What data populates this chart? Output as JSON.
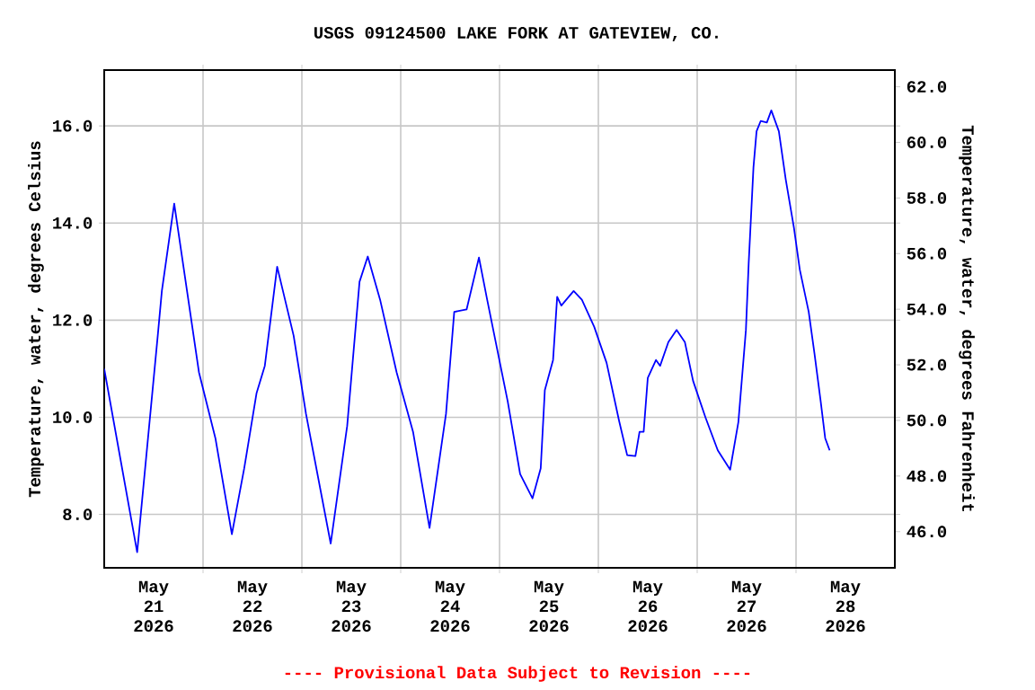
{
  "chart_data": {
    "type": "line",
    "title": "USGS 09124500 LAKE FORK AT GATEVIEW, CO.",
    "ylabel": "Temperature, water, degrees Celsius",
    "y2label": "Temperature, water, degrees Fahrenheit",
    "annotations": [
      "---- Provisional Data Subject to Revision ----"
    ],
    "color": "#0000ff",
    "grid": true,
    "xlim": [
      "2026-05-21T00:00",
      "2026-05-29T00:00"
    ],
    "xticks": [
      {
        "value": "2026-05-21T12:00",
        "label": "May 21 2026"
      },
      {
        "value": "2026-05-22T00:00",
        "label": null
      },
      {
        "value": "2026-05-22T12:00",
        "label": "May 22 2026"
      },
      {
        "value": "2026-05-23T00:00",
        "label": null
      },
      {
        "value": "2026-05-23T12:00",
        "label": "May 23 2026"
      },
      {
        "value": "2026-05-24T00:00",
        "label": null
      },
      {
        "value": "2026-05-24T12:00",
        "label": "May 24 2026"
      },
      {
        "value": "2026-05-25T00:00",
        "label": null
      },
      {
        "value": "2026-05-25T12:00",
        "label": "May 25 2026"
      },
      {
        "value": "2026-05-26T00:00",
        "label": null
      },
      {
        "value": "2026-05-26T12:00",
        "label": "May 26 2026"
      },
      {
        "value": "2026-05-27T00:00",
        "label": null
      },
      {
        "value": "2026-05-27T12:00",
        "label": "May 27 2026"
      },
      {
        "value": "2026-05-28T00:00",
        "label": null
      },
      {
        "value": "2026-05-28T12:00",
        "label": "May 28 2026"
      }
    ],
    "ylim": [
      6.9,
      17.15
    ],
    "yticks": [
      {
        "value": 8,
        "label": "8.0"
      },
      {
        "value": 10,
        "label": "10.0"
      },
      {
        "value": 12,
        "label": "12.0"
      },
      {
        "value": 14,
        "label": "14.0"
      },
      {
        "value": 16,
        "label": "16.0"
      }
    ],
    "y2lim": [
      44.7,
      62.6
    ],
    "y2ticks": [
      {
        "value": 46,
        "label": "46.0"
      },
      {
        "value": 48,
        "label": "48.0"
      },
      {
        "value": 50,
        "label": "50.0"
      },
      {
        "value": 52,
        "label": "52.0"
      },
      {
        "value": 54,
        "label": "54.0"
      },
      {
        "value": 56,
        "label": "56.0"
      },
      {
        "value": 58,
        "label": "58.0"
      },
      {
        "value": 60,
        "label": "60.0"
      },
      {
        "value": 62,
        "label": "62.0"
      }
    ],
    "x": [
      "2026-05-21T00:00",
      "2026-05-21T08:00",
      "2026-05-21T13:00",
      "2026-05-21T14:00",
      "2026-05-21T17:00",
      "2026-05-21T23:00",
      "2026-05-22T03:00",
      "2026-05-22T07:00",
      "2026-05-22T10:00",
      "2026-05-22T13:00",
      "2026-05-22T15:00",
      "2026-05-22T18:00",
      "2026-05-22T22:00",
      "2026-05-23T01:00",
      "2026-05-23T07:00",
      "2026-05-23T11:00",
      "2026-05-23T14:00",
      "2026-05-23T16:00",
      "2026-05-23T19:00",
      "2026-05-23T23:00",
      "2026-05-24T03:00",
      "2026-05-24T07:00",
      "2026-05-24T11:00",
      "2026-05-24T13:00",
      "2026-05-24T16:00",
      "2026-05-24T19:00",
      "2026-05-24T21:00",
      "2026-05-25T02:00",
      "2026-05-25T05:00",
      "2026-05-25T08:00",
      "2026-05-25T10:00",
      "2026-05-25T11:00",
      "2026-05-25T13:00",
      "2026-05-25T14:00",
      "2026-05-25T15:00",
      "2026-05-25T18:00",
      "2026-05-25T20:00",
      "2026-05-25T23:00",
      "2026-05-26T02:00",
      "2026-05-26T05:00",
      "2026-05-26T07:00",
      "2026-05-26T09:00",
      "2026-05-26T10:00",
      "2026-05-26T11:00",
      "2026-05-26T12:00",
      "2026-05-26T14:00",
      "2026-05-26T15:00",
      "2026-05-26T17:00",
      "2026-05-26T19:00",
      "2026-05-26T21:00",
      "2026-05-26T23:00",
      "2026-05-27T02:00",
      "2026-05-27T05:00",
      "2026-05-27T08:00",
      "2026-05-27T10:00",
      "2026-05-27T11:50",
      "2026-05-27T12:30",
      "2026-05-27T13:40",
      "2026-05-27T14:25",
      "2026-05-27T15:25",
      "2026-05-27T16:55",
      "2026-05-27T18:00",
      "2026-05-27T19:50",
      "2026-05-27T21:30",
      "2026-05-27T23:30",
      "2026-05-28T00:55",
      "2026-05-28T03:05",
      "2026-05-28T04:30",
      "2026-05-28T06:00",
      "2026-05-28T07:05",
      "2026-05-28T08:10"
    ],
    "values": [
      11.0,
      7.22,
      11.68,
      12.6,
      14.4,
      10.93,
      9.57,
      7.59,
      8.95,
      10.5,
      11.06,
      13.1,
      11.68,
      10.07,
      7.4,
      9.82,
      12.79,
      13.31,
      12.42,
      10.93,
      9.7,
      7.72,
      10.07,
      12.17,
      12.22,
      13.29,
      12.42,
      10.32,
      8.83,
      8.33,
      8.95,
      10.56,
      11.18,
      12.48,
      12.3,
      12.6,
      12.42,
      11.86,
      11.12,
      9.94,
      9.22,
      9.2,
      9.7,
      9.7,
      10.81,
      11.18,
      11.06,
      11.55,
      11.8,
      11.55,
      10.75,
      10.0,
      9.32,
      8.92,
      9.9,
      11.8,
      13.16,
      15.15,
      15.89,
      16.1,
      16.07,
      16.32,
      15.89,
      14.9,
      13.9,
      13.04,
      12.17,
      11.3,
      10.32,
      9.57,
      9.32
    ]
  }
}
